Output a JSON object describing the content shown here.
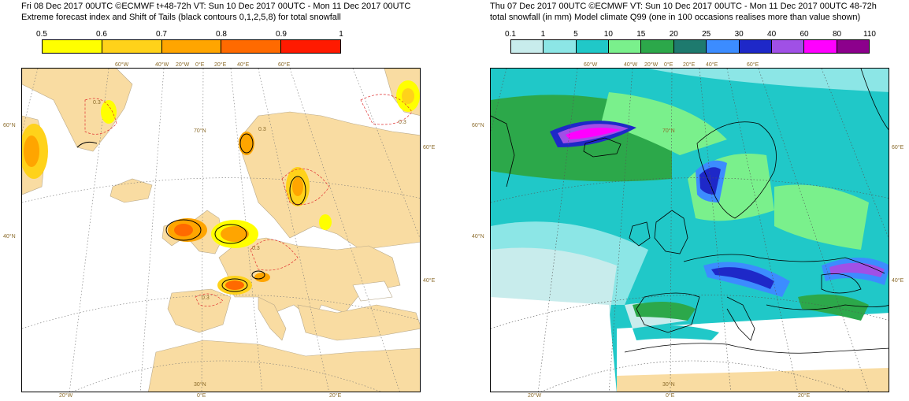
{
  "left": {
    "title1": "Fri 08 Dec 2017 00UTC ©ECMWF t+48-72h  VT: Sun 10 Dec 2017 00UTC - Mon 11 Dec 2017 00UTC",
    "title2": "Extreme forecast index and Shift of Tails (black contours 0,1,2,5,8) for total snowfall",
    "legend_labels": [
      "0.5",
      "0.6",
      "0.7",
      "0.8",
      "0.9",
      "1"
    ],
    "legend_colors": [
      "#ffff00",
      "#ffd21a",
      "#ffa500",
      "#ff6a00",
      "#ff1a00"
    ],
    "geo_labels": {
      "lon_top": [
        "60°W",
        "40°W",
        "20°W",
        "0°E",
        "20°E",
        "40°E",
        "60°E"
      ],
      "lat_left": [
        "60°N",
        "40°N"
      ],
      "lat_inner": [
        "70°N",
        "30°N"
      ],
      "lon_bottom": [
        "20°W",
        "0°E",
        "20°E"
      ],
      "lat_right": [
        "60°E",
        "40°E"
      ]
    },
    "contour_labels": [
      "0.3",
      "0.3",
      "0.3",
      "0.3",
      "0.3"
    ]
  },
  "right": {
    "title1": "Thu 07 Dec 2017 00UTC ©ECMWF VT: Sun 10 Dec 2017 00UTC - Mon 11 Dec 2017 00UTC   48-72h",
    "title2": "total snowfall (in mm)  Model climate Q99 (one in 100 occasions realises more than value shown)",
    "legend_labels": [
      "0.1",
      "1",
      "5",
      "10",
      "15",
      "20",
      "25",
      "30",
      "40",
      "60",
      "80",
      "110"
    ],
    "legend_colors": [
      "#c8ecec",
      "#8ce6e6",
      "#20c8c8",
      "#7af08c",
      "#2ca84a",
      "#1e7a6e",
      "#3c8cff",
      "#1e28c8",
      "#a050e6",
      "#ff00ff",
      "#8c008c"
    ],
    "geo_labels": {
      "lon_top": [
        "60°W",
        "40°W",
        "20°W",
        "0°E",
        "20°E",
        "40°E",
        "60°E"
      ],
      "lat_left": [
        "60°N",
        "40°N"
      ],
      "lat_inner": [
        "70°N",
        "30°N"
      ],
      "lon_bottom": [
        "20°W",
        "0°E",
        "20°E"
      ],
      "lat_right": [
        "60°E",
        "40°E"
      ]
    }
  },
  "colors": {
    "land": "#f9dca2",
    "sea": "#ffffff",
    "coast": "#b9a98a",
    "grid": "#777777"
  }
}
